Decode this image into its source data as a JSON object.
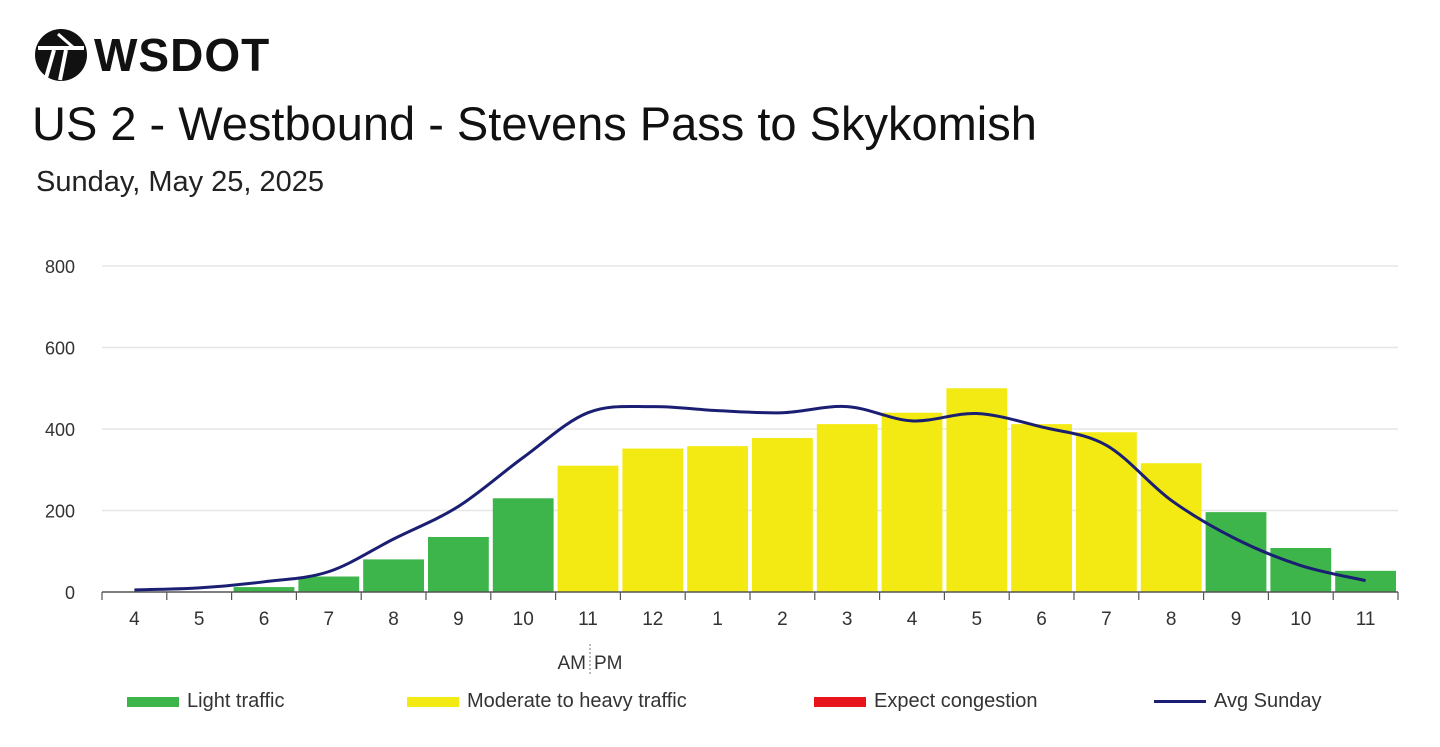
{
  "brand": {
    "name": "WSDOT"
  },
  "header": {
    "title": "US 2 - Westbound - Stevens Pass to Skykomish",
    "subtitle": "Sunday, May 25, 2025"
  },
  "colors": {
    "light": "#3db54a",
    "moderate": "#f2ea12",
    "congestion": "#e8141c",
    "avg_line": "#1b1f73",
    "grid": "#e6e6e6",
    "axis": "#555555"
  },
  "chart_data": {
    "type": "bar",
    "categories": [
      "4",
      "5",
      "6",
      "7",
      "8",
      "9",
      "10",
      "11",
      "12",
      "1",
      "2",
      "3",
      "4",
      "5",
      "6",
      "7",
      "8",
      "9",
      "10",
      "11"
    ],
    "values": [
      0,
      0,
      12,
      38,
      80,
      135,
      230,
      310,
      352,
      358,
      378,
      412,
      440,
      500,
      412,
      392,
      316,
      196,
      108,
      52
    ],
    "bar_levels": [
      "light",
      "light",
      "light",
      "light",
      "light",
      "light",
      "light",
      "moderate",
      "moderate",
      "moderate",
      "moderate",
      "moderate",
      "moderate",
      "moderate",
      "moderate",
      "moderate",
      "moderate",
      "light",
      "light",
      "light"
    ],
    "series": [
      {
        "name": "Avg Sunday",
        "type": "line",
        "values": [
          5,
          10,
          25,
          50,
          130,
          210,
          330,
          440,
          455,
          445,
          440,
          455,
          420,
          438,
          405,
          360,
          225,
          130,
          65,
          28
        ]
      }
    ],
    "ylim": [
      0,
      800
    ],
    "yticks": [
      0,
      200,
      400,
      600,
      800
    ],
    "period_labels": {
      "am": "AM",
      "pm": "PM"
    },
    "grid": true
  },
  "legend": [
    {
      "label": "Light traffic",
      "kind": "bar",
      "color_key": "light"
    },
    {
      "label": "Moderate to heavy traffic",
      "kind": "bar",
      "color_key": "moderate"
    },
    {
      "label": "Expect congestion",
      "kind": "bar",
      "color_key": "congestion"
    },
    {
      "label": "Avg Sunday",
      "kind": "line",
      "color_key": "avg_line"
    }
  ]
}
